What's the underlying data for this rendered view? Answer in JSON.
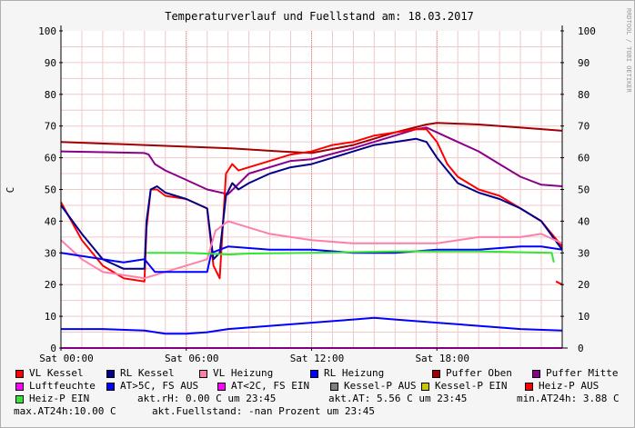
{
  "chart_data": {
    "type": "line",
    "title": "Temperaturverlauf und Fuellstand am: 18.03.2017",
    "ylabel": "C",
    "ylim": [
      0,
      100
    ],
    "yticks": [
      0,
      10,
      20,
      30,
      40,
      50,
      60,
      70,
      80,
      90,
      100
    ],
    "xlim": [
      0,
      24
    ],
    "xticks": [
      {
        "x": 0,
        "label": "Sat 00:00"
      },
      {
        "x": 6,
        "label": "Sat 06:00"
      },
      {
        "x": 12,
        "label": "Sat 12:00"
      },
      {
        "x": 18,
        "label": "Sat 18:00"
      }
    ],
    "credit": "RRDTOOL / TOBI OETIKER",
    "grid": true,
    "series": [
      {
        "name": "Puffer Oben",
        "color": "#a00000",
        "x": [
          0,
          4,
          8,
          10.5,
          12,
          14,
          16,
          17.5,
          18,
          20,
          22,
          24
        ],
        "values": [
          65,
          64,
          63,
          62,
          61.5,
          64,
          68,
          70.5,
          71,
          70.5,
          69.5,
          68.5
        ]
      },
      {
        "name": "Puffer Mitte",
        "color": "#8a008a",
        "x": [
          0,
          4,
          4.2,
          4.5,
          5,
          6,
          7,
          8,
          9,
          11,
          12,
          14,
          17,
          17.5,
          18,
          19,
          20,
          21,
          22,
          23,
          24
        ],
        "values": [
          62,
          61.5,
          61,
          58,
          56,
          53,
          50,
          48.5,
          55,
          59,
          59.5,
          63,
          69,
          69.5,
          68,
          65,
          62,
          58,
          54,
          51.5,
          51
        ]
      },
      {
        "name": "VL Kessel",
        "color": "#ff0000",
        "x": [
          0,
          1,
          2,
          3,
          4,
          4.1,
          4.3,
          4.6,
          5,
          6,
          7,
          7.3,
          7.6,
          7.9,
          8.2,
          8.5,
          9,
          10,
          11,
          12,
          13,
          14,
          15,
          16,
          17,
          17.5,
          18,
          18.5,
          19,
          20,
          21,
          22,
          23,
          24
        ],
        "values": [
          46,
          34,
          26,
          22,
          21,
          38,
          50,
          50,
          48,
          47,
          44,
          26,
          22,
          55,
          58,
          56,
          57,
          59,
          61,
          62,
          64,
          65,
          67,
          68,
          69,
          69,
          65,
          58,
          54,
          50,
          48,
          44,
          40,
          32
        ]
      },
      {
        "name": "RL Kessel",
        "color": "#00008b",
        "x": [
          0,
          1,
          2,
          3,
          4,
          4.1,
          4.3,
          4.6,
          5,
          6,
          7,
          7.3,
          7.6,
          7.9,
          8.2,
          8.5,
          9,
          10,
          11,
          12,
          13,
          14,
          15,
          16,
          17,
          17.5,
          18,
          18.5,
          19,
          20,
          21,
          22,
          23,
          24
        ],
        "values": [
          45,
          36,
          28,
          25,
          25,
          40,
          50,
          51,
          49,
          47,
          44,
          28,
          30,
          48,
          52,
          50,
          52,
          55,
          57,
          58,
          60,
          62,
          64,
          65,
          66,
          65,
          60,
          56,
          52,
          49,
          47,
          44,
          40,
          31
        ]
      },
      {
        "name": "VL Heizung",
        "color": "#ff7faa",
        "x": [
          0,
          1,
          2,
          3,
          4,
          5,
          6,
          7,
          7.4,
          8,
          9,
          10,
          12,
          14,
          16,
          18,
          20,
          22,
          23,
          24
        ],
        "values": [
          34,
          28,
          24,
          23,
          22,
          24,
          26,
          28,
          37,
          40,
          38,
          36,
          34,
          33,
          33,
          33,
          35,
          35,
          36,
          33
        ]
      },
      {
        "name": "RL Heizung",
        "color": "#0000ff",
        "x": [
          0,
          1,
          2,
          3,
          4,
          4.5,
          5,
          6,
          7,
          7.2,
          8,
          10,
          12,
          14,
          16,
          18,
          20,
          22,
          23,
          24
        ],
        "values": [
          30,
          29,
          28,
          27,
          28,
          24,
          24,
          24,
          24,
          30,
          32,
          31,
          31,
          30,
          30,
          31,
          31,
          32,
          32,
          31
        ]
      },
      {
        "name": "Luftfeuchte",
        "color": "#ff00ff",
        "x": [
          0,
          24
        ],
        "values": [
          0,
          0
        ]
      },
      {
        "name": "AT>5C, FS AUS",
        "color": "#0000ff",
        "x": [
          0,
          2,
          4,
          5,
          6,
          7,
          8,
          10,
          12,
          14,
          15,
          16,
          18,
          20,
          22,
          24
        ],
        "values": [
          6,
          6,
          5.5,
          4.5,
          4.5,
          5,
          6,
          7,
          8,
          9,
          9.5,
          9,
          8,
          7,
          6,
          5.5
        ]
      },
      {
        "name": "Heiz-P EIN",
        "color": "#33e633",
        "x": [
          4.1,
          6,
          8,
          8.1,
          9,
          12,
          16,
          20,
          23.5,
          23.6
        ],
        "values": [
          30,
          30,
          29.5,
          29.5,
          29.8,
          30,
          30.5,
          30.5,
          30,
          27
        ]
      },
      {
        "name": "Heiz-P AUS",
        "color": "#ff0000",
        "x": [
          23.7,
          24
        ],
        "values": [
          21,
          20
        ]
      }
    ],
    "legend": [
      [
        {
          "name": "VL Kessel",
          "color": "#ff0000"
        },
        {
          "name": "RL Kessel",
          "color": "#00008b"
        },
        {
          "name": "VL Heizung",
          "color": "#ff7faa"
        },
        {
          "name": "RL Heizung",
          "color": "#0000ff"
        },
        {
          "name": "Puffer Oben",
          "color": "#a00000"
        },
        {
          "name": "Puffer Mitte",
          "color": "#8a008a"
        }
      ],
      [
        {
          "name": "Luftfeuchte",
          "color": "#ff00ff"
        },
        {
          "name": "AT>5C, FS AUS",
          "color": "#0000ff"
        },
        {
          "name": "AT<2C, FS EIN",
          "color": "#ff00ff"
        },
        {
          "name": "Kessel-P AUS",
          "color": "#808080"
        },
        {
          "name": "Kessel-P EIN",
          "color": "#c8c800"
        },
        {
          "name": "Heiz-P AUS",
          "color": "#ff0000"
        }
      ]
    ],
    "legend_row3_item": {
      "name": "Heiz-P EIN",
      "color": "#33e633"
    },
    "stats": {
      "rh": "akt.rH: 0.00 C um 23:45",
      "at": "akt.AT: 5.56 C um 23:45",
      "min_at": "min.AT24h: 3.88 C",
      "max_at": "max.AT24h:10.00 C",
      "fuellstand": "akt.Fuellstand: -nan Prozent um 23:45"
    }
  }
}
